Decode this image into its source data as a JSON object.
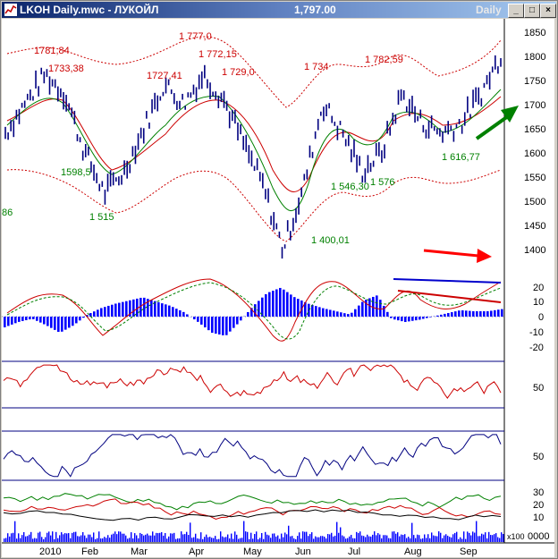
{
  "window": {
    "title": "LKOH Daily.mwc - ЛУКОЙЛ",
    "price": "1,797.00",
    "period": "Daily",
    "buttons": [
      "_",
      "□",
      "×"
    ]
  },
  "chart_data": [
    {
      "type": "line",
      "panel": "price",
      "ylim": [
        1375,
        1875
      ],
      "y_ticks": [
        "1850",
        "1800",
        "1750",
        "1700",
        "1650",
        "1600",
        "1550",
        "1500",
        "1450",
        "1400"
      ],
      "x_labels": [
        "2010",
        "Feb",
        "Mar",
        "Apr",
        "May",
        "Jun",
        "Jul",
        "Aug",
        "Sep"
      ],
      "series": [
        {
          "values": [
            1640,
            1700,
            1760,
            1720,
            1600,
            1515,
            1560,
            1650,
            1740,
            1700,
            1760,
            1710,
            1620,
            1530,
            1400,
            1520,
            1700,
            1640,
            1560,
            1600,
            1720,
            1660,
            1640,
            1660,
            1720,
            1800
          ]
        },
        {
          "values": [
            1650,
            1680,
            1720,
            1710,
            1660,
            1590,
            1580,
            1620,
            1680,
            1710,
            1720,
            1710,
            1660,
            1590,
            1510,
            1540,
            1620,
            1660,
            1640,
            1620,
            1660,
            1680,
            1650,
            1640,
            1680,
            1720
          ]
        }
      ],
      "annotations": {
        "highs": [
          "1781,84",
          "1733,38",
          "1727,41",
          "1 777,0",
          "1 772,15",
          "1 729,0",
          "1 734",
          "1 782,59"
        ],
        "lows": [
          "1598,5",
          "1 515",
          "1 400,01",
          "1 546,30",
          "1 576",
          "1 616,77"
        ],
        "left_cut": "86"
      },
      "colors": {
        "price": "#000080",
        "ema": "#cc0000",
        "bands": "#cc0000",
        "green": "#008000"
      }
    },
    {
      "type": "bar",
      "panel": "macd",
      "ylim": [
        -25,
        25
      ],
      "y_ticks": [
        "20",
        "10",
        "0",
        "-10",
        "-20"
      ],
      "values": [
        -10,
        -5,
        -2,
        -8,
        -15,
        -8,
        2,
        8,
        12,
        15,
        18,
        14,
        10,
        4,
        -5,
        -15,
        -18,
        -5,
        10,
        22,
        27,
        18,
        12,
        8,
        5,
        2,
        15,
        20,
        -2,
        -5,
        -3,
        0,
        3,
        6,
        5,
        5,
        7
      ]
    },
    {
      "type": "line",
      "panel": "rsi",
      "y_ticks": [
        "50"
      ]
    },
    {
      "type": "line",
      "panel": "stochastic",
      "y_ticks": [
        "50"
      ]
    },
    {
      "type": "line",
      "panel": "dmi",
      "y_ticks": [
        "30",
        "20",
        "10"
      ]
    },
    {
      "type": "bar",
      "panel": "volume",
      "y_ticks": [
        "0000"
      ],
      "multiplier_label": "x100"
    }
  ]
}
